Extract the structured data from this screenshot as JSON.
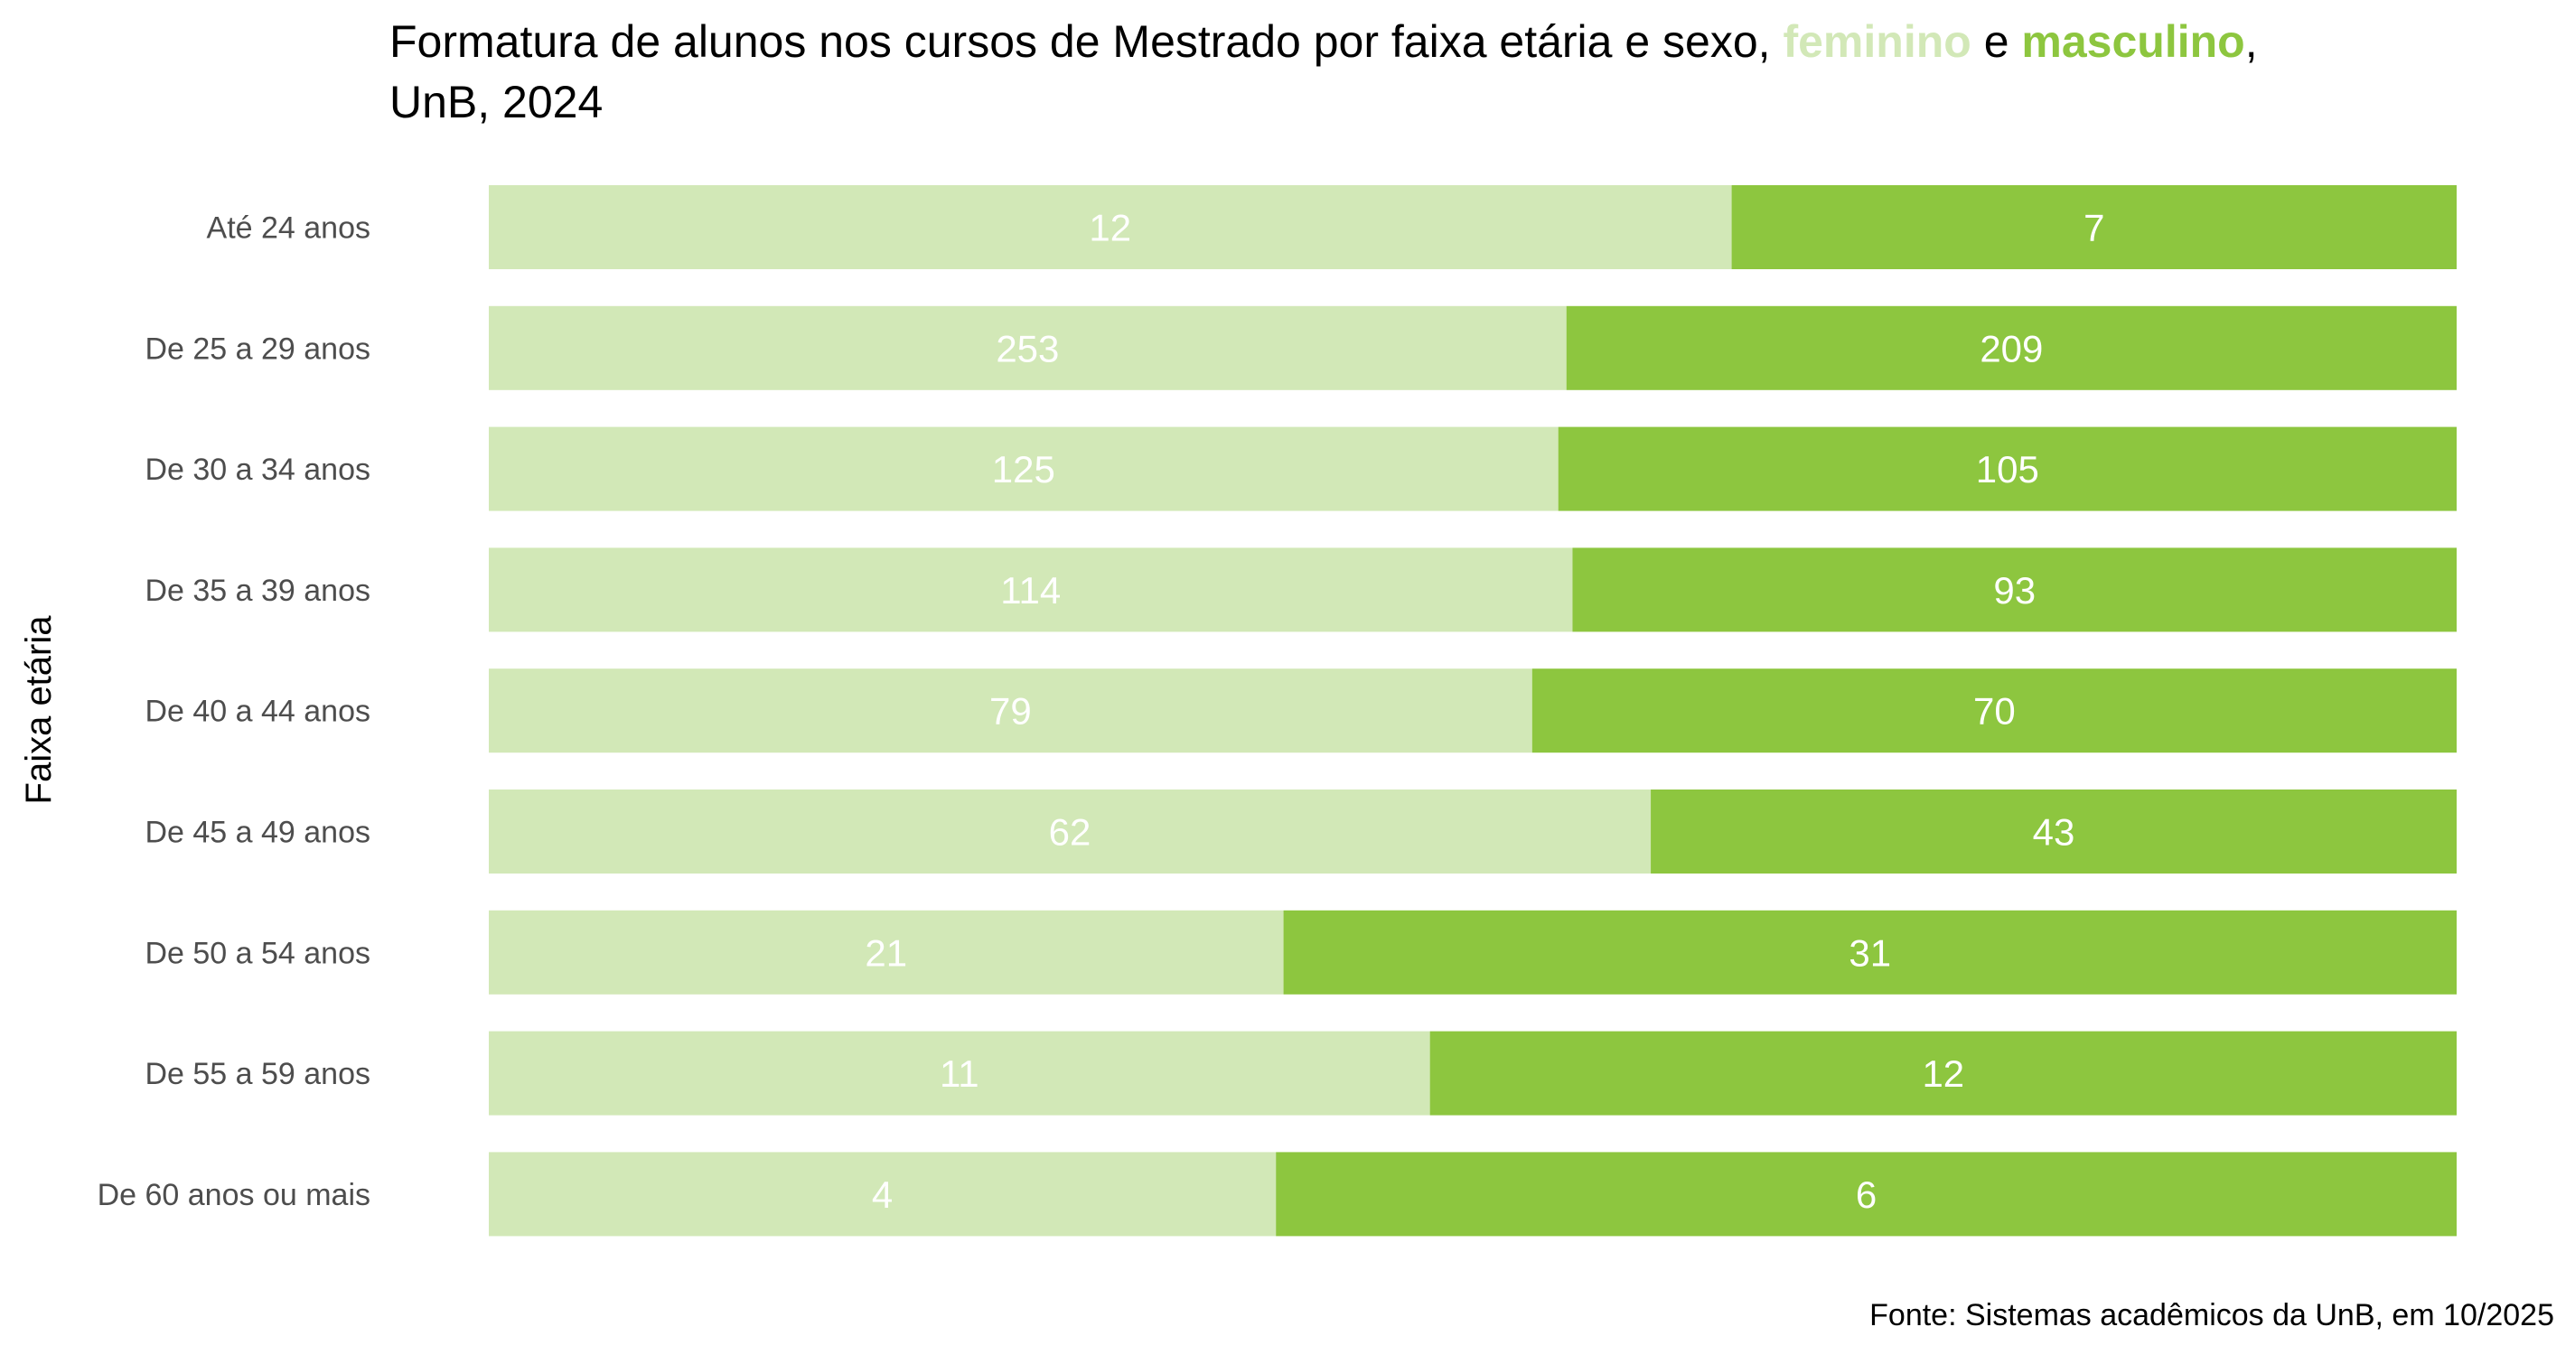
{
  "chart_data": {
    "type": "bar",
    "orientation": "horizontal",
    "stacked": "percent",
    "title": {
      "line1_before": "Formatura de alunos nos cursos de Mestrado por faixa etária e sexo, ",
      "series1_word": "feminino",
      "connector": " e ",
      "series2_word": "masculino",
      "line1_after": ",",
      "line2": "UnB, 2024"
    },
    "ylabel": "Faixa etária",
    "xlabel": "",
    "caption": "Fonte: Sistemas acadêmicos da UnB, em 10/2025",
    "categories": [
      "Até 24 anos",
      "De 25 a 29 anos",
      "De 30 a 34 anos",
      "De 35 a 39 anos",
      "De 40 a 44 anos",
      "De 45 a 49 anos",
      "De 50 a 54 anos",
      "De 55 a 59 anos",
      "De 60 anos ou mais"
    ],
    "series": [
      {
        "name": "feminino",
        "color": "#d2e8b7",
        "values": [
          12,
          253,
          125,
          114,
          79,
          62,
          21,
          11,
          4
        ]
      },
      {
        "name": "masculino",
        "color": "#8dc63f",
        "values": [
          7,
          209,
          105,
          93,
          70,
          43,
          31,
          12,
          6
        ]
      }
    ],
    "grid": false,
    "legend": "none"
  }
}
